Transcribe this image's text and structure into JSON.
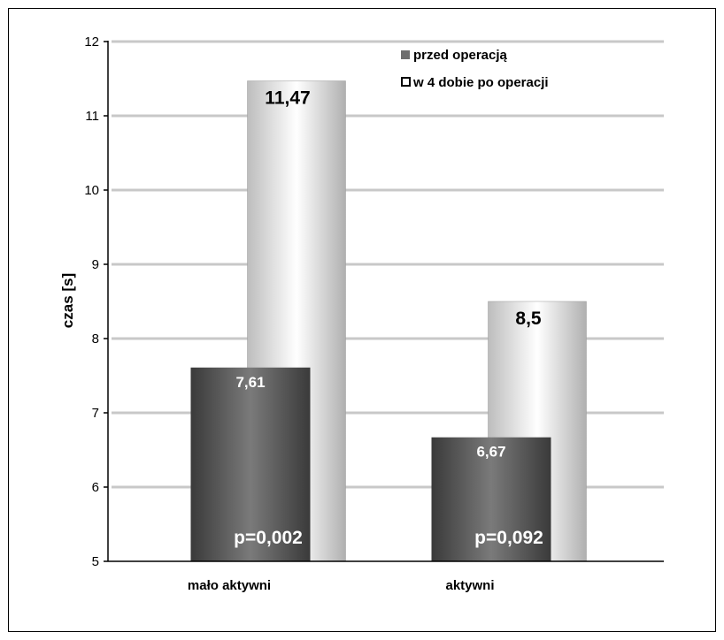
{
  "chart_data": {
    "type": "bar",
    "categories": [
      "mało aktywni",
      "aktywni"
    ],
    "series": [
      {
        "name": "przed operacją",
        "values": [
          7.61,
          6.67
        ],
        "value_labels": [
          "7,61",
          "6,67"
        ],
        "color": "#555555"
      },
      {
        "name": "w 4 dobie po operacji",
        "values": [
          11.47,
          8.5
        ],
        "value_labels": [
          "11,47",
          "8,5"
        ],
        "color": "#e8e8e8"
      }
    ],
    "annotations": [
      "p=0,002",
      "p=0,092"
    ],
    "ylabel": "czas [s]",
    "xlabel": "",
    "title": "",
    "ylim": [
      5,
      12
    ],
    "yticks": [
      "5",
      "6",
      "7",
      "8",
      "9",
      "10",
      "11",
      "12"
    ],
    "grid": true,
    "legend_position": "top-right"
  }
}
